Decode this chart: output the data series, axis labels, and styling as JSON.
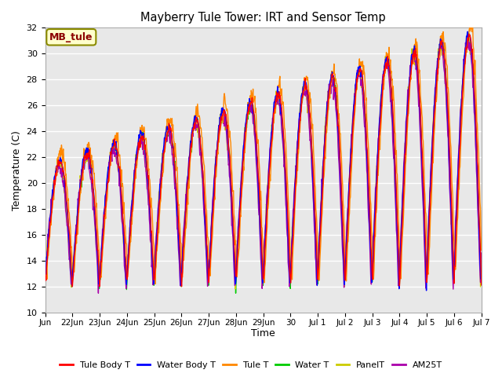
{
  "title": "Mayberry Tule Tower: IRT and Sensor Temp",
  "xlabel": "Time",
  "ylabel": "Temperature (C)",
  "ylim": [
    10,
    32
  ],
  "yticks": [
    10,
    12,
    14,
    16,
    18,
    20,
    22,
    24,
    26,
    28,
    30,
    32
  ],
  "x_tick_labels": [
    "Jun",
    "22Jun",
    "23Jun",
    "24Jun",
    "25Jun",
    "26Jun",
    "27Jun",
    "28Jun",
    "29Jun",
    "30",
    "Jul 1",
    "Jul 2",
    "Jul 3",
    "Jul 4",
    "Jul 5",
    "Jul 6",
    "Jul 7"
  ],
  "series_colors": {
    "Tule Body T": "#ff0000",
    "Water Body T": "#0000ff",
    "Tule T": "#ff8800",
    "Water T": "#00cc00",
    "PanelT": "#cccc00",
    "AM25T": "#aa00aa"
  },
  "legend_label": "MB_tule",
  "plot_bg": "#e8e8e8",
  "grid_color": "#ffffff",
  "n_points": 960
}
